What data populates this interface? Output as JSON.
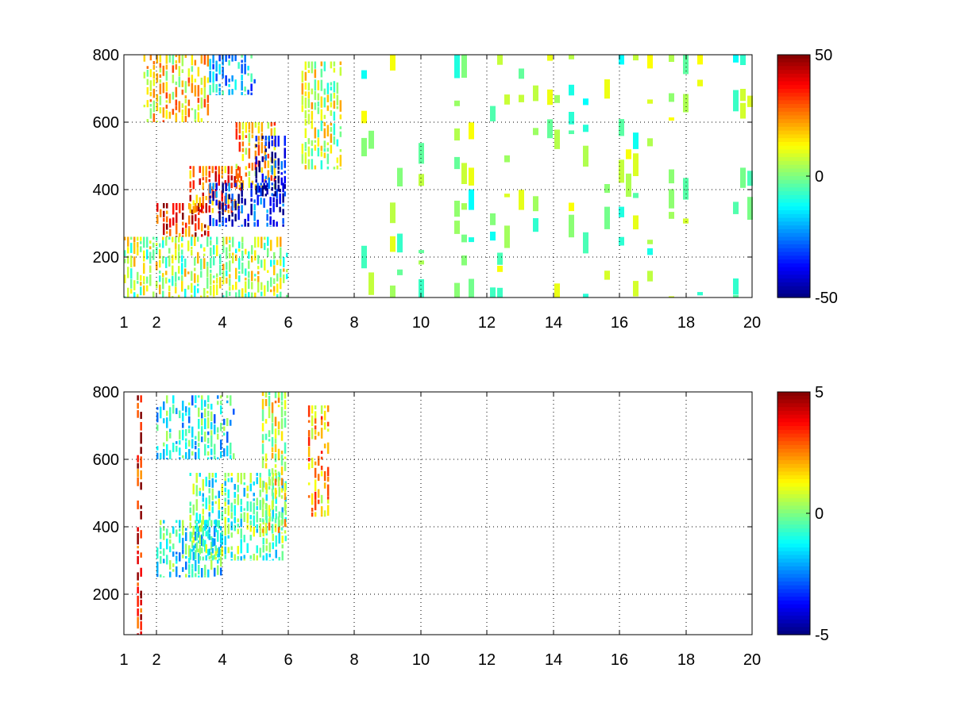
{
  "chart_data": [
    {
      "type": "heatmap",
      "title": "",
      "xlabel": "",
      "ylabel": "",
      "x_tick_labels": [
        "1",
        "2",
        "4",
        "6",
        "8",
        "10",
        "12",
        "14",
        "16",
        "18",
        "20"
      ],
      "y_tick_labels": [
        "200",
        "400",
        "600",
        "800"
      ],
      "xlim": [
        1,
        20
      ],
      "ylim": [
        80,
        800
      ],
      "grid": true,
      "colormap": "jet",
      "colorbar": {
        "min": -50,
        "max": 50,
        "tick_labels": [
          "50",
          "0",
          "-50"
        ]
      },
      "regions": [
        {
          "x": [
            2.0,
            3.6
          ],
          "y": [
            260,
            360
          ],
          "value": 35
        },
        {
          "x": [
            3.0,
            4.6
          ],
          "y": [
            330,
            470
          ],
          "value": 28
        },
        {
          "x": [
            4.4,
            5.6
          ],
          "y": [
            400,
            600
          ],
          "value": 20
        },
        {
          "x": [
            3.6,
            5.9
          ],
          "y": [
            290,
            420
          ],
          "value": -35
        },
        {
          "x": [
            5.0,
            5.9
          ],
          "y": [
            380,
            560
          ],
          "value": -40
        },
        {
          "x": [
            1.6,
            3.6
          ],
          "y": [
            600,
            800
          ],
          "value": 14
        },
        {
          "x": [
            3.6,
            5.0
          ],
          "y": [
            680,
            800
          ],
          "value": -18
        },
        {
          "x": [
            6.4,
            7.6
          ],
          "y": [
            460,
            780
          ],
          "value": 6
        },
        {
          "x": [
            1.0,
            6.0
          ],
          "y": [
            80,
            260
          ],
          "value": 5
        },
        {
          "x": [
            8.0,
            20.0
          ],
          "y": [
            80,
            800
          ],
          "value": 0
        }
      ]
    },
    {
      "type": "heatmap",
      "title": "",
      "xlabel": "",
      "ylabel": "",
      "x_tick_labels": [
        "1",
        "2",
        "4",
        "6",
        "8",
        "10",
        "12",
        "14",
        "16",
        "18",
        "20"
      ],
      "y_tick_labels": [
        "200",
        "400",
        "600",
        "800"
      ],
      "xlim": [
        1,
        20
      ],
      "ylim": [
        80,
        800
      ],
      "grid": true,
      "colormap": "jet",
      "colorbar": {
        "min": -5,
        "max": 5,
        "tick_labels": [
          "5",
          "0",
          "-5"
        ]
      },
      "regions": [
        {
          "x": [
            2.0,
            4.0
          ],
          "y": [
            250,
            420
          ],
          "value": -1
        },
        {
          "x": [
            3.0,
            5.9
          ],
          "y": [
            300,
            560
          ],
          "value": -0.5
        },
        {
          "x": [
            2.0,
            4.4
          ],
          "y": [
            600,
            790
          ],
          "value": -1.2
        },
        {
          "x": [
            5.2,
            5.9
          ],
          "y": [
            380,
            800
          ],
          "value": 1
        },
        {
          "x": [
            6.6,
            7.2
          ],
          "y": [
            430,
            760
          ],
          "value": 2
        },
        {
          "x": [
            1.4,
            1.5
          ],
          "y": [
            80,
            790
          ],
          "value": 4
        }
      ]
    }
  ]
}
